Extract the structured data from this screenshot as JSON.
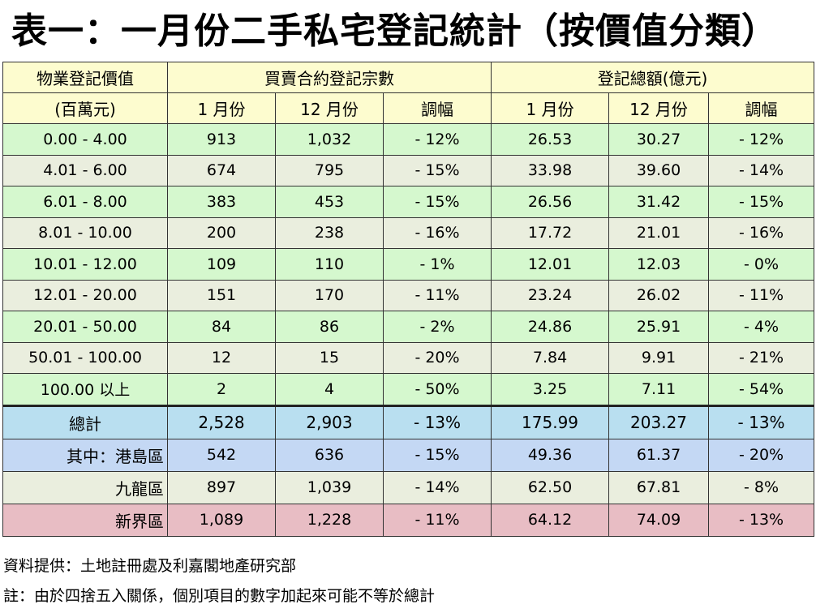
{
  "title": "表一：一月份二手私宅登記統計（按價值分類）",
  "header": {
    "col1_line1": "物業登記價值",
    "col1_line2": "(百萬元)",
    "group1": "買賣合約登記宗數",
    "group2": "登記總額(億元)",
    "sub": [
      "1 月份",
      "12 月份",
      "調幅",
      "1 月份",
      "12 月份",
      "調幅"
    ]
  },
  "rows": [
    {
      "range": "0.00 - 4.00",
      "v": [
        "913",
        "1,032",
        "- 12%",
        "26.53",
        "30.27",
        "- 12%"
      ]
    },
    {
      "range": "4.01 - 6.00",
      "v": [
        "674",
        "795",
        "- 15%",
        "33.98",
        "39.60",
        "- 14%"
      ]
    },
    {
      "range": "6.01 - 8.00",
      "v": [
        "383",
        "453",
        "- 15%",
        "26.56",
        "31.42",
        "- 15%"
      ]
    },
    {
      "range": "8.01 - 10.00",
      "v": [
        "200",
        "238",
        "- 16%",
        "17.72",
        "21.01",
        "- 16%"
      ]
    },
    {
      "range": "10.01 - 12.00",
      "v": [
        "109",
        "110",
        "- 1%",
        "12.01",
        "12.03",
        "- 0%"
      ]
    },
    {
      "range": "12.01 - 20.00",
      "v": [
        "151",
        "170",
        "- 11%",
        "23.24",
        "26.02",
        "- 11%"
      ]
    },
    {
      "range": "20.01 - 50.00",
      "v": [
        "84",
        "86",
        "- 2%",
        "24.86",
        "25.91",
        "- 4%"
      ]
    },
    {
      "range": "50.01 - 100.00",
      "v": [
        "12",
        "15",
        "- 20%",
        "7.84",
        "9.91",
        "- 21%"
      ]
    },
    {
      "range": "100.00  以上",
      "v": [
        "2",
        "4",
        "- 50%",
        "3.25",
        "7.11",
        "- 54%"
      ]
    }
  ],
  "total": {
    "label": "總計",
    "v": [
      "2,528",
      "2,903",
      "- 13%",
      "175.99",
      "203.27",
      "- 13%"
    ]
  },
  "regions": [
    {
      "label": "其中：港島區",
      "v": [
        "542",
        "636",
        "- 15%",
        "49.36",
        "61.37",
        "- 20%"
      ]
    },
    {
      "label": "九龍區",
      "v": [
        "897",
        "1,039",
        "- 14%",
        "62.50",
        "67.81",
        "- 8%"
      ]
    },
    {
      "label": "新界區",
      "v": [
        "1,089",
        "1,228",
        "- 11%",
        "64.12",
        "74.09",
        "- 13%"
      ]
    }
  ],
  "notes": {
    "source": "資料提供：土地註冊處及利嘉閣地產研究部",
    "remark": "註：由於四捨五入關係，個別項目的數字加起來可能不等於總計"
  }
}
